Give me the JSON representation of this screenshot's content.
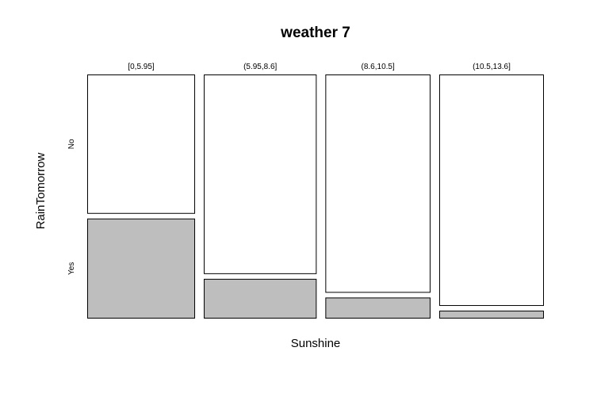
{
  "chart_data": {
    "type": "mosaic",
    "title": "weather 7",
    "xlabel": "Sunshine",
    "ylabel": "RainTomorrow",
    "x_categories": [
      "[0,5.95]",
      "(5.95,8.6]",
      "(8.6,10.5]",
      "(10.5,13.6]"
    ],
    "y_categories": [
      "No",
      "Yes"
    ],
    "column_proportions": [
      0.238,
      0.249,
      0.232,
      0.231
    ],
    "yes_share": [
      0.418,
      0.166,
      0.088,
      0.033
    ],
    "colors": {
      "No": "#ffffff",
      "Yes": "#bebebe",
      "border": "#000000"
    }
  }
}
